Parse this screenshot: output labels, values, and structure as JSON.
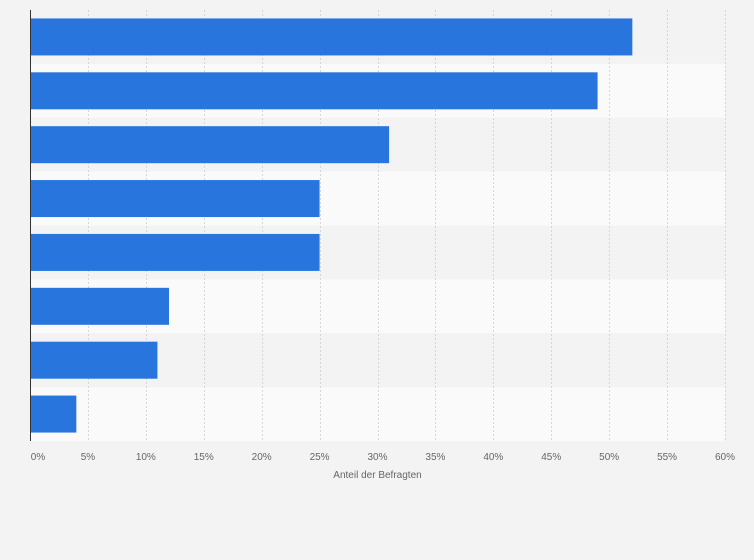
{
  "chart_data": {
    "type": "bar",
    "orientation": "horizontal",
    "categories": [
      "",
      "",
      "",
      "",
      "",
      "",
      "",
      ""
    ],
    "values": [
      52,
      49,
      31,
      25,
      25,
      12,
      11,
      4
    ],
    "xlabel": "Anteil der Befragten",
    "xlim": [
      0,
      60
    ],
    "xticks": [
      0,
      5,
      10,
      15,
      20,
      25,
      30,
      35,
      40,
      45,
      50,
      55,
      60
    ],
    "tick_suffix": "%",
    "grid": true,
    "bar_color": "#2876dd",
    "band_colors": [
      "#f3f3f3",
      "#fafafa"
    ]
  }
}
